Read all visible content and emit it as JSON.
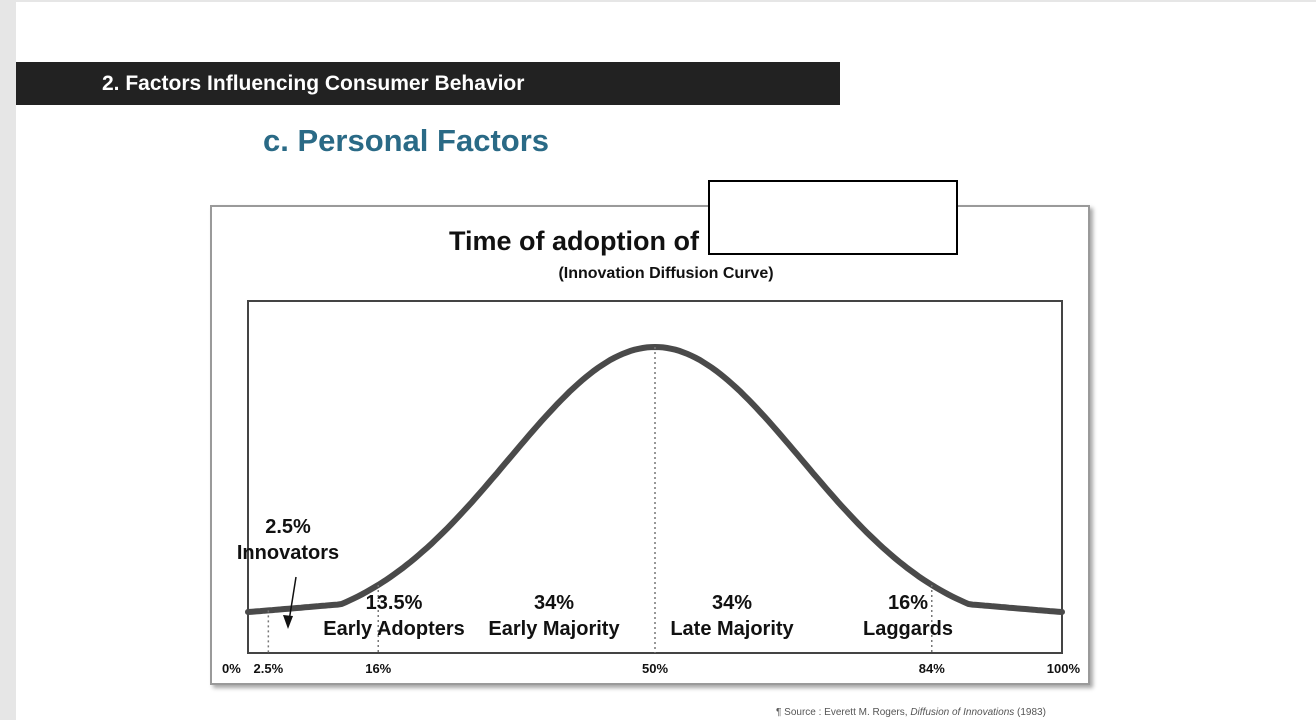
{
  "slide": {
    "section_title": "2. Factors Influencing Consumer Behavior",
    "subtitle": "c. Personal Factors"
  },
  "source": {
    "prefix": "¶ Source : Everett M. Rogers, ",
    "work": "Diffusion of Innovations",
    "year": " (1983)"
  },
  "chart_data": {
    "type": "area",
    "title": "Time of adoption of",
    "subtitle": "(Innovation Diffusion Curve)",
    "x_ticks": [
      "0%",
      "2.5%",
      "16%",
      "50%",
      "84%",
      "100%"
    ],
    "x_tick_values": [
      0,
      2.5,
      16,
      50,
      84,
      100
    ],
    "dividers": [
      2.5,
      16,
      50,
      84
    ],
    "segments": [
      {
        "percent": "2.5%",
        "name": "Innovators"
      },
      {
        "percent": "13.5%",
        "name": "Early Adopters"
      },
      {
        "percent": "34%",
        "name": "Early Majority"
      },
      {
        "percent": "34%",
        "name": "Late Majority"
      },
      {
        "percent": "16%",
        "name": "Laggards"
      }
    ],
    "curve": "bell",
    "curve_color": "#4a4a4a",
    "grid": false,
    "legend": "none"
  }
}
